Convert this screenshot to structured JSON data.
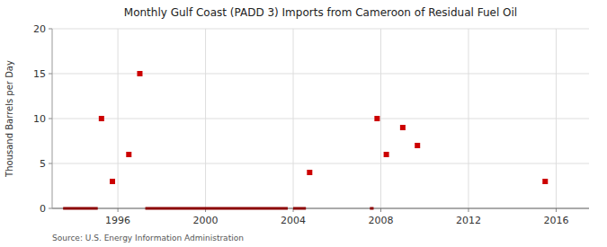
{
  "chart_data": {
    "type": "scatter",
    "title": "Monthly Gulf Coast (PADD 3) Imports from Cameroon of Residual Fuel Oil",
    "ylabel": "Thousand Barrels per Day",
    "source": "Source: U.S. Energy Information Administration",
    "xlim": [
      1993.0,
      2017.5
    ],
    "ylim": [
      0,
      20
    ],
    "xticks": [
      1996,
      2000,
      2004,
      2008,
      2012,
      2016
    ],
    "yticks": [
      0,
      5,
      10,
      15,
      20
    ],
    "grid": true,
    "series": [
      {
        "type": "scatter",
        "color": "#cc0000",
        "marker": "square",
        "x": [
          1995.25,
          1995.75,
          1996.5,
          1997.0,
          2004.75,
          2007.83,
          2008.25,
          2009.0,
          2009.67,
          2015.5
        ],
        "values": [
          10,
          3,
          6,
          15,
          4,
          10,
          6,
          9,
          7,
          3
        ]
      },
      {
        "type": "segment",
        "color": "#8B0000",
        "x_start": [
          1993.5,
          1997.25,
          2004.0,
          2007.5
        ],
        "x_end": [
          1995.08,
          2003.75,
          2004.58,
          2007.67
        ],
        "values": [
          0,
          0,
          0,
          0
        ]
      }
    ]
  }
}
